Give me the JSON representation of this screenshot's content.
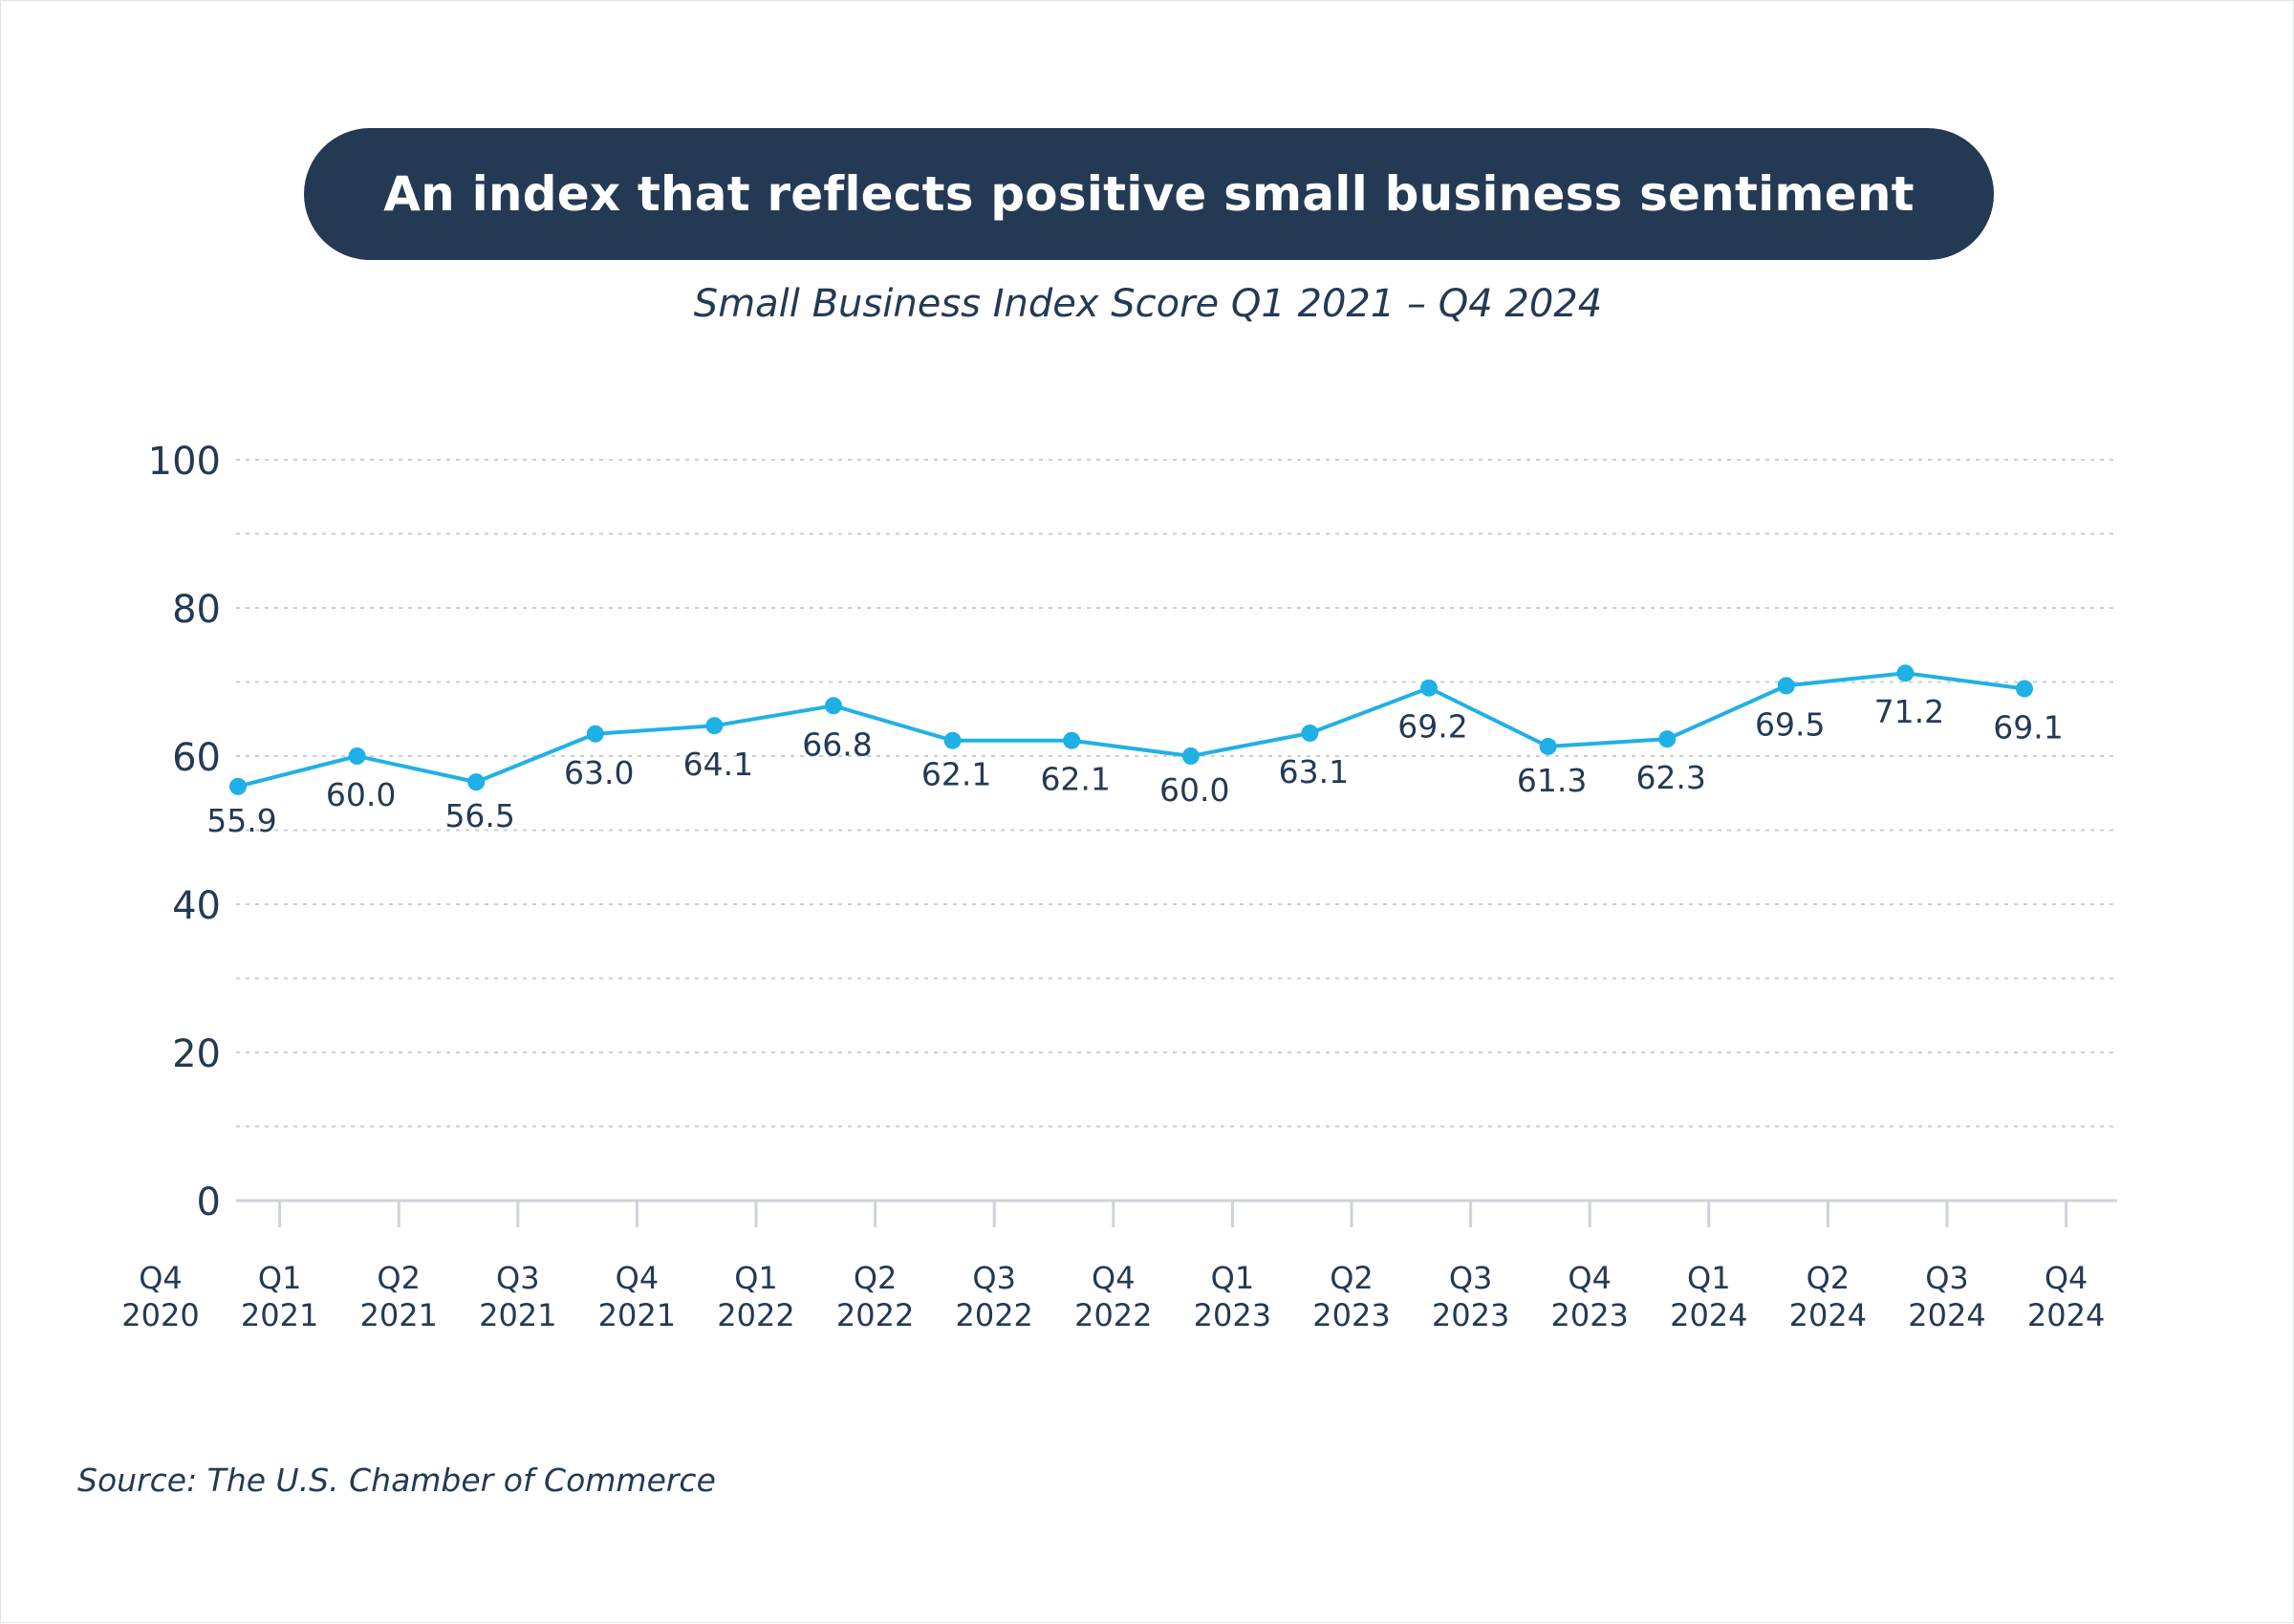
{
  "title": "An index that reflects positive small business sentiment",
  "colors": {
    "navy": "#243a54",
    "line": "#1fb1e6",
    "grid": "#c9ced4",
    "axis": "#cdd3d9"
  },
  "chart_data": {
    "type": "line",
    "title": "Small Business Index Score Q1 2021 – Q4 2024",
    "xlabel": "",
    "ylabel": "",
    "ylim": [
      0,
      100
    ],
    "yticks": [
      "0",
      "20",
      "40",
      "60",
      "80",
      "100"
    ],
    "grid": true,
    "x_ticks": [
      [
        "Q4",
        "2020"
      ],
      [
        "Q1",
        "2021"
      ],
      [
        "Q2",
        "2021"
      ],
      [
        "Q3",
        "2021"
      ],
      [
        "Q4",
        "2021"
      ],
      [
        "Q1",
        "2022"
      ],
      [
        "Q2",
        "2022"
      ],
      [
        "Q3",
        "2022"
      ],
      [
        "Q4",
        "2022"
      ],
      [
        "Q1",
        "2023"
      ],
      [
        "Q2",
        "2023"
      ],
      [
        "Q3",
        "2023"
      ],
      [
        "Q4",
        "2023"
      ],
      [
        "Q1",
        "2024"
      ],
      [
        "Q2",
        "2024"
      ],
      [
        "Q3",
        "2024"
      ],
      [
        "Q4",
        "2024"
      ]
    ],
    "series": [
      {
        "name": "Small Business Index Score",
        "values": [
          55.9,
          60.0,
          56.5,
          63.0,
          64.1,
          66.8,
          62.1,
          62.1,
          60.0,
          63.1,
          69.2,
          61.3,
          62.3,
          69.5,
          71.2,
          69.1
        ],
        "labels": [
          "55.9",
          "60.0",
          "56.5",
          "63.0",
          "64.1",
          "66.8",
          "62.1",
          "62.1",
          "60.0",
          "63.1",
          "69.2",
          "61.3",
          "62.3",
          "69.5",
          "71.2",
          "69.1"
        ]
      }
    ]
  },
  "source": "Source: The U.S. Chamber of Commerce"
}
